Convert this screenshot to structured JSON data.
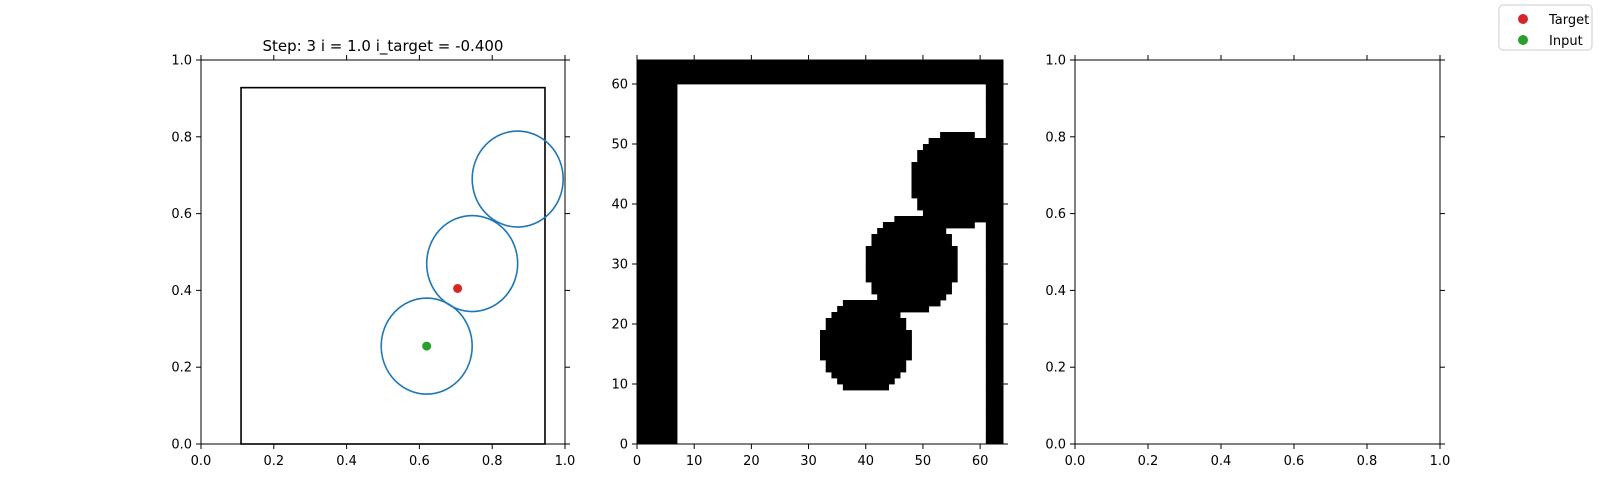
{
  "chart_data": [
    {
      "type": "scatter",
      "title": "Step: 3 i = 1.0 i_target = -0.400",
      "xlim": [
        0,
        1
      ],
      "ylim": [
        0,
        1
      ],
      "xticks": [
        "0.0",
        "0.2",
        "0.4",
        "0.6",
        "0.8",
        "1.0"
      ],
      "yticks": [
        "0.0",
        "0.2",
        "0.4",
        "0.6",
        "0.8",
        "1.0"
      ],
      "boundary": {
        "x0": 0.11,
        "x1": 0.945,
        "y0": 0.0,
        "y1": 0.928,
        "color": "#000000"
      },
      "circles": [
        {
          "cx": 0.62,
          "cy": 0.255,
          "r": 0.125,
          "color": "#1f77b4"
        },
        {
          "cx": 0.745,
          "cy": 0.47,
          "r": 0.125,
          "color": "#1f77b4"
        },
        {
          "cx": 0.87,
          "cy": 0.69,
          "r": 0.125,
          "color": "#1f77b4"
        }
      ],
      "points": [
        {
          "series": "Target",
          "x": 0.705,
          "y": 0.405,
          "color": "#d62728"
        },
        {
          "series": "Input",
          "x": 0.62,
          "y": 0.255,
          "color": "#2ca02c"
        }
      ]
    },
    {
      "type": "heatmap",
      "xlim": [
        0,
        64
      ],
      "ylim": [
        0,
        64
      ],
      "xticks": [
        "0",
        "10",
        "20",
        "30",
        "40",
        "50",
        "60"
      ],
      "yticks": [
        "0",
        "10",
        "20",
        "30",
        "40",
        "50",
        "60"
      ],
      "colormap": [
        "#ffffff",
        "#000000"
      ],
      "walls": [
        {
          "x0": 0,
          "x1": 7,
          "y0": 0,
          "y1": 64
        },
        {
          "x0": 0,
          "x1": 64,
          "y0": 60,
          "y1": 64
        },
        {
          "x0": 61,
          "x1": 64,
          "y0": 0,
          "y1": 64
        }
      ],
      "blobs": [
        {
          "cx": 40,
          "cy": 16.5,
          "r": 8
        },
        {
          "cx": 48,
          "cy": 30,
          "r": 8
        },
        {
          "cx": 56,
          "cy": 44,
          "r": 8
        }
      ]
    },
    {
      "type": "scatter",
      "xlim": [
        0,
        1
      ],
      "ylim": [
        0,
        1
      ],
      "xticks": [
        "0.0",
        "0.2",
        "0.4",
        "0.6",
        "0.8",
        "1.0"
      ],
      "yticks": [
        "0.0",
        "0.2",
        "0.4",
        "0.6",
        "0.8",
        "1.0"
      ]
    }
  ],
  "legend": {
    "placement": "top-right",
    "entries": [
      {
        "label": "Target",
        "color": "#d62728"
      },
      {
        "label": "Input",
        "color": "#2ca02c"
      }
    ]
  }
}
